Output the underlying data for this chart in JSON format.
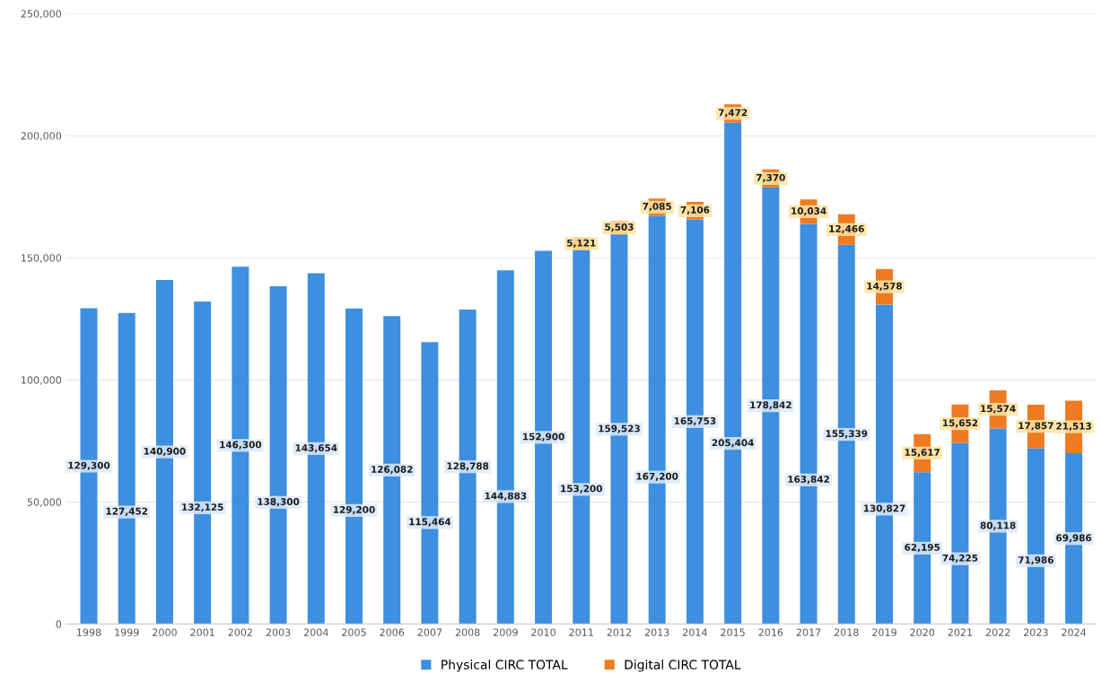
{
  "chart_data": {
    "type": "bar",
    "stacked": true,
    "categories": [
      "1998",
      "1999",
      "2000",
      "2001",
      "2002",
      "2003",
      "2004",
      "2005",
      "2006",
      "2007",
      "2008",
      "2009",
      "2010",
      "2011",
      "2012",
      "2013",
      "2014",
      "2015",
      "2016",
      "2017",
      "2018",
      "2019",
      "2020",
      "2021",
      "2022",
      "2023",
      "2024"
    ],
    "series": [
      {
        "name": "Physical CIRC TOTAL",
        "color": "#3d8fe0",
        "values": [
          129300,
          127452,
          140900,
          132125,
          146300,
          138300,
          143654,
          129200,
          126082,
          115464,
          128788,
          144883,
          152900,
          153200,
          159523,
          167200,
          165753,
          205404,
          178842,
          163842,
          155339,
          130827,
          62195,
          74225,
          80118,
          71986,
          69986
        ],
        "value_labels": [
          "129,300",
          "127,452",
          "140,900",
          "132,125",
          "146,300",
          "138,300",
          "143,654",
          "129,200",
          "126,082",
          "115,464",
          "128,788",
          "144,883",
          "152,900",
          "153,200",
          "159,523",
          "167,200",
          "165,753",
          "205,404",
          "178,842",
          "163,842",
          "155,339",
          "130,827",
          "62,195",
          "74,225",
          "80,118",
          "71,986",
          "69,986"
        ]
      },
      {
        "name": "Digital CIRC TOTAL",
        "color": "#ee7b22",
        "values": [
          null,
          null,
          null,
          null,
          null,
          null,
          null,
          null,
          null,
          null,
          null,
          null,
          null,
          5121,
          5503,
          7085,
          7106,
          7472,
          7370,
          10034,
          12466,
          14578,
          15617,
          15652,
          15574,
          17857,
          21513
        ],
        "value_labels": [
          null,
          null,
          null,
          null,
          null,
          null,
          null,
          null,
          null,
          null,
          null,
          null,
          null,
          "5,121",
          "5,503",
          "7,085",
          "7,106",
          "7,472",
          "7,370",
          "10,034",
          "12,466",
          "14,578",
          "15,617",
          "15,652",
          "15,574",
          "17,857",
          "21,513"
        ]
      }
    ],
    "ylim": [
      0,
      250000
    ],
    "yticks": [
      {
        "value": 0,
        "label": "0"
      },
      {
        "value": 50000,
        "label": "50,000"
      },
      {
        "value": 100000,
        "label": "100,000"
      },
      {
        "value": 150000,
        "label": "150,000"
      },
      {
        "value": 200000,
        "label": "200,000"
      },
      {
        "value": 250000,
        "label": "250,000"
      }
    ],
    "grid": "y",
    "legend": "bottom"
  }
}
